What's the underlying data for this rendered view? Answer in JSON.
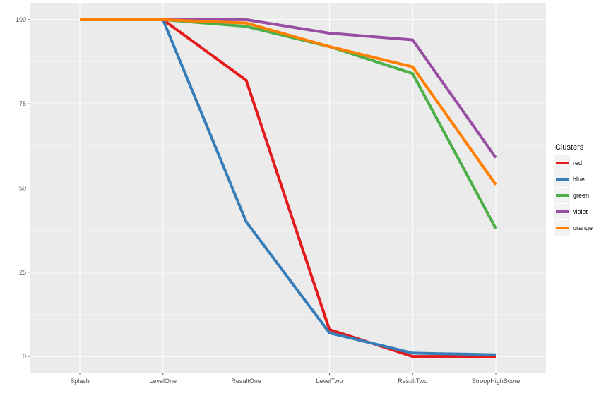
{
  "chart_data": {
    "type": "line",
    "categories": [
      "Splash",
      "LevelOne",
      "ResultOne",
      "LevelTwo",
      "ResultTwo",
      "StroopHighScore"
    ],
    "yticks": [
      0,
      25,
      50,
      75,
      100
    ],
    "ylim": [
      -5,
      105
    ],
    "grid": true,
    "legend_title": "Clusters",
    "legend_position": "right",
    "series": [
      {
        "name": "red",
        "color": "#e41a1c",
        "values": [
          100,
          100,
          82,
          8,
          0,
          0
        ]
      },
      {
        "name": "blue",
        "color": "#377eb8",
        "values": [
          100,
          100,
          40,
          7,
          1,
          0.5
        ]
      },
      {
        "name": "green",
        "color": "#4daf4a",
        "values": [
          100,
          100,
          98,
          92,
          84,
          38
        ]
      },
      {
        "name": "violet",
        "color": "#984ea3",
        "values": [
          100,
          100,
          100,
          96,
          94,
          59
        ]
      },
      {
        "name": "orange",
        "color": "#ff7f00",
        "values": [
          100,
          100,
          99,
          92,
          86,
          51
        ]
      }
    ]
  }
}
